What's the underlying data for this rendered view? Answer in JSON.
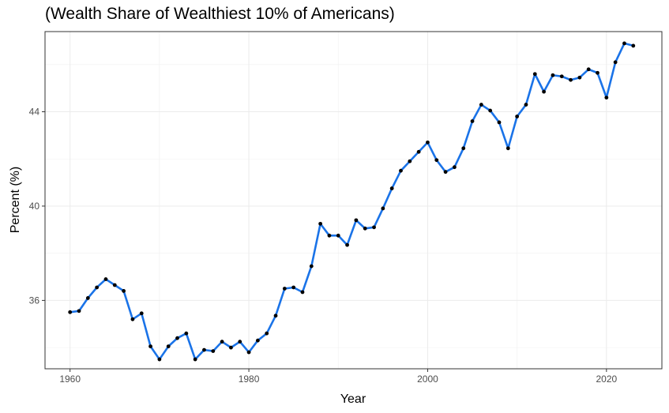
{
  "chart_data": {
    "type": "line",
    "title": "(Wealth Share of Wealthiest 10% of Americans)",
    "xlabel": "Year",
    "ylabel": "Percent (%)",
    "xlim": [
      1957.2,
      2026.2
    ],
    "ylim": [
      33.1,
      47.4
    ],
    "xticks": [
      1960,
      1980,
      2000,
      2020
    ],
    "yticks": [
      36,
      40,
      44
    ],
    "grid": true,
    "line_color": "#1a73e8",
    "point_color": "#000000",
    "series": [
      {
        "name": "Wealth share",
        "x": [
          1960,
          1961,
          1962,
          1963,
          1964,
          1965,
          1966,
          1967,
          1968,
          1969,
          1970,
          1971,
          1972,
          1973,
          1974,
          1975,
          1976,
          1977,
          1978,
          1979,
          1980,
          1981,
          1982,
          1983,
          1984,
          1985,
          1986,
          1987,
          1988,
          1989,
          1990,
          1991,
          1992,
          1993,
          1994,
          1995,
          1996,
          1997,
          1998,
          1999,
          2000,
          2001,
          2002,
          2003,
          2004,
          2005,
          2006,
          2007,
          2008,
          2009,
          2010,
          2011,
          2012,
          2013,
          2014,
          2015,
          2016,
          2017,
          2018,
          2019,
          2020,
          2021,
          2022,
          2023
        ],
        "values": [
          35.5,
          35.55,
          36.1,
          36.55,
          36.9,
          36.65,
          36.4,
          35.2,
          35.45,
          34.05,
          33.5,
          34.05,
          34.4,
          34.6,
          33.5,
          33.9,
          33.85,
          34.25,
          34.0,
          34.25,
          33.8,
          34.3,
          34.6,
          35.35,
          36.5,
          36.55,
          36.35,
          37.45,
          39.25,
          38.75,
          38.75,
          38.35,
          39.4,
          39.05,
          39.1,
          39.9,
          40.75,
          41.5,
          41.9,
          42.3,
          42.7,
          41.95,
          41.45,
          41.65,
          42.45,
          43.6,
          44.3,
          44.05,
          43.55,
          42.45,
          43.8,
          44.3,
          45.6,
          44.85,
          45.55,
          45.5,
          45.35,
          45.45,
          45.8,
          45.65,
          44.6,
          46.1,
          46.9,
          46.8
        ]
      }
    ]
  }
}
